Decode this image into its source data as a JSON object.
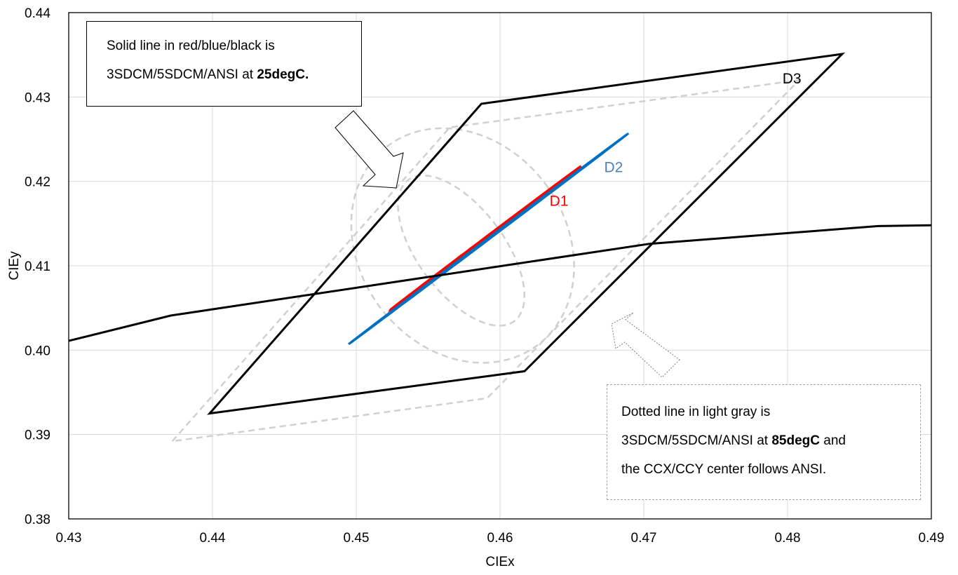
{
  "chart_data": {
    "type": "scatter",
    "xlabel": "CIEx",
    "ylabel": "CIEy",
    "xlim": [
      0.43,
      0.49
    ],
    "ylim": [
      0.38,
      0.44
    ],
    "x_ticks": [
      "0.43",
      "0.44",
      "0.45",
      "0.46",
      "0.47",
      "0.48",
      "0.49"
    ],
    "y_ticks": [
      "0.38",
      "0.39",
      "0.40",
      "0.41",
      "0.42",
      "0.43",
      "0.44"
    ],
    "grid": true,
    "series": [
      {
        "name": "D1",
        "style": "solid",
        "color": "#ff0000",
        "shape": "ellipse",
        "center": [
          0.459,
          0.4133
        ],
        "x_range": [
          0.453,
          0.4654
        ],
        "y_range": [
          0.4067,
          0.42
        ]
      },
      {
        "name": "D2",
        "style": "solid",
        "color": "#0070c0",
        "shape": "ellipse",
        "center": [
          0.4592,
          0.4132
        ],
        "x_range": [
          0.4498,
          0.4686
        ],
        "y_range": [
          0.402,
          0.4243
        ]
      },
      {
        "name": "D3",
        "style": "solid",
        "color": "#000000",
        "shape": "quadrilateral",
        "points": [
          [
            0.4398,
            0.3925
          ],
          [
            0.4587,
            0.4292
          ],
          [
            0.4838,
            0.4351
          ],
          [
            0.4617,
            0.3975
          ]
        ]
      },
      {
        "style": "solid",
        "color": "#000000",
        "shape": "line",
        "points": [
          [
            0.43,
            0.4011
          ],
          [
            0.4371,
            0.4041
          ],
          [
            0.4704,
            0.4126
          ],
          [
            0.4863,
            0.4147
          ],
          [
            0.49,
            0.4148
          ]
        ]
      },
      {
        "style": "dotted",
        "color": "#d0d0d0",
        "shape": "ellipse",
        "center": [
          0.4573,
          0.4118
        ],
        "x_range": [
          0.4529,
          0.4617
        ],
        "y_range": [
          0.4025,
          0.4203
        ]
      },
      {
        "style": "dotted",
        "color": "#d0d0d0",
        "shape": "ellipse",
        "center": [
          0.4574,
          0.4124
        ],
        "x_range": [
          0.4497,
          0.4652
        ],
        "y_range": [
          0.3968,
          0.4246
        ]
      },
      {
        "style": "dotted",
        "color": "#d0d0d0",
        "shape": "quadrilateral",
        "points": [
          [
            0.4372,
            0.3892
          ],
          [
            0.4565,
            0.4264
          ],
          [
            0.4808,
            0.432
          ],
          [
            0.4591,
            0.3943
          ]
        ]
      }
    ],
    "labels": [
      {
        "text": "D1",
        "color": "#ff0000",
        "at": [
          0.4641,
          0.4171
        ]
      },
      {
        "text": "D2",
        "color": "#4f81bd",
        "at": [
          0.4679,
          0.4211
        ]
      },
      {
        "text": "D3",
        "color": "#000000",
        "at": [
          0.4803,
          0.4316
        ]
      }
    ],
    "annotations": [
      {
        "id": "solid",
        "lines": [
          "Solid line in red/blue/black is",
          "3SDCM/5SDCM/ANSI at ",
          "25degC."
        ]
      },
      {
        "id": "dotted",
        "lines": [
          "Dotted line in light gray is",
          "3SDCM/5SDCM/ANSI at ",
          "85degC",
          " and",
          "the CCX/CCY center follows ANSI."
        ]
      }
    ]
  }
}
